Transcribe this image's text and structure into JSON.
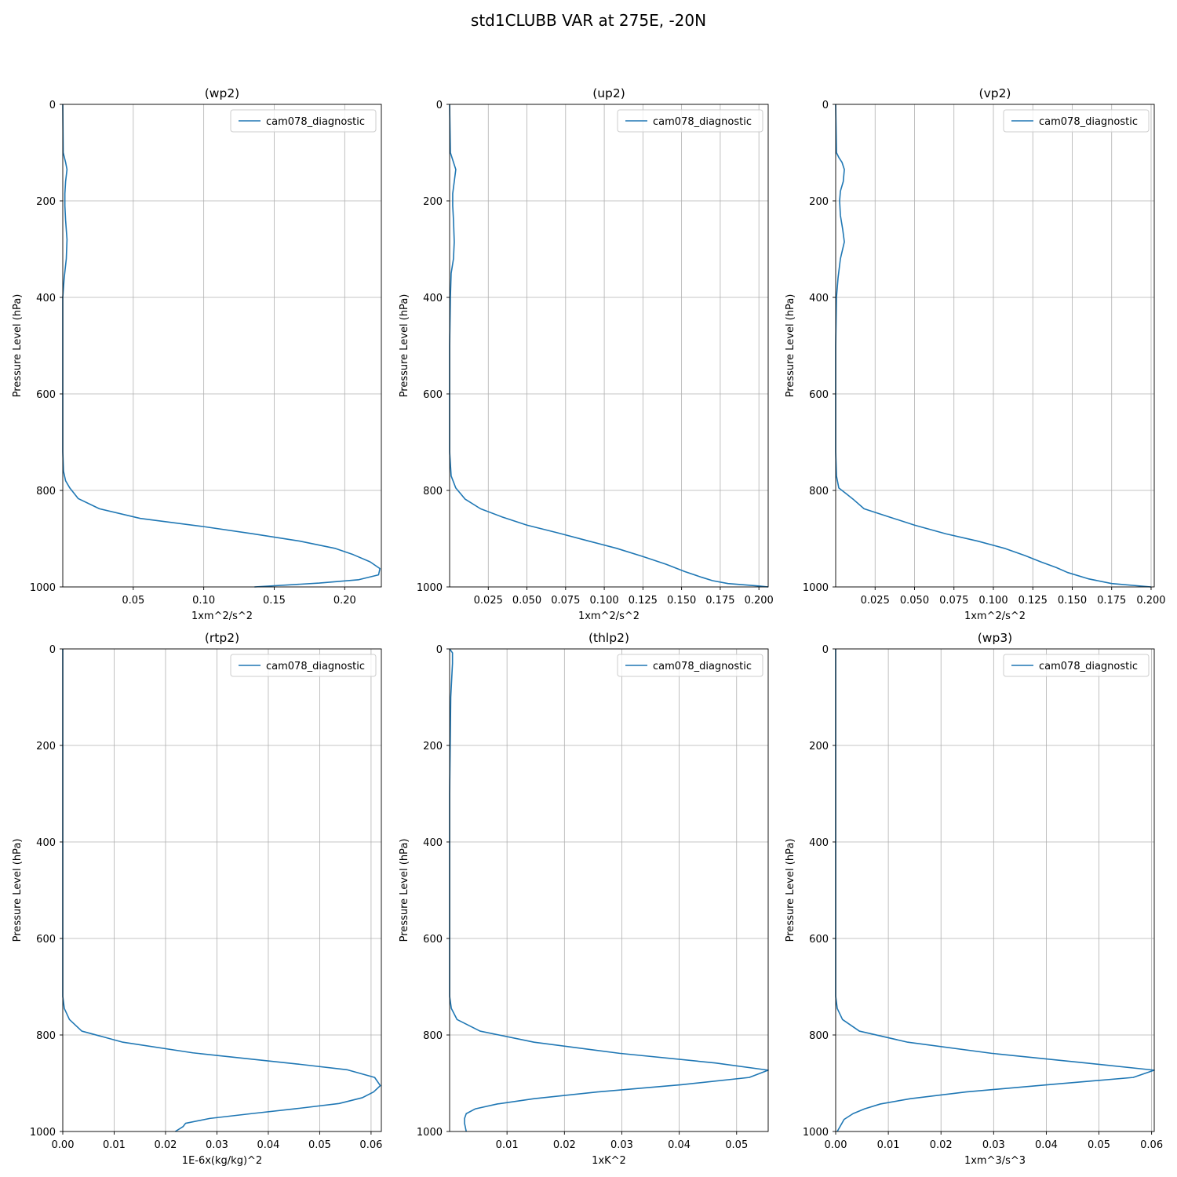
{
  "figure": {
    "title": "std1CLUBB VAR at 275E, -20N"
  },
  "chart_data": [
    {
      "type": "line",
      "title": "(wp2)",
      "xlabel": "1xm^2/s^2",
      "ylabel": "Pressure Level (hPa)",
      "xlim": [
        0.0,
        0.226
      ],
      "ylim": [
        1000,
        0
      ],
      "xticks": [
        "0.05",
        "0.10",
        "0.15",
        "0.20"
      ],
      "xtick_values": [
        0.05,
        0.1,
        0.15,
        0.2
      ],
      "yticks": [
        "0",
        "200",
        "400",
        "600",
        "800",
        "1000"
      ],
      "ytick_values": [
        0,
        200,
        400,
        600,
        800,
        1000
      ],
      "grid": true,
      "legend": "top-right",
      "series": [
        {
          "name": "cam078_diagnostic",
          "color": "#1f77b4",
          "x": [
            0.0,
            0.0003,
            0.002,
            0.003,
            0.002,
            0.0015,
            0.0015,
            0.002,
            0.003,
            0.0025,
            0.001,
            0.0,
            0.0,
            0.0,
            0.0,
            0.0005,
            0.002,
            0.005,
            0.011,
            0.026,
            0.055,
            0.1,
            0.135,
            0.168,
            0.193,
            0.206,
            0.218,
            0.225,
            0.224,
            0.21,
            0.182,
            0.136
          ],
          "y": [
            0,
            100,
            120,
            135,
            160,
            185,
            210,
            240,
            280,
            320,
            360,
            400,
            500,
            600,
            720,
            760,
            780,
            795,
            817,
            838,
            858,
            875,
            890,
            905,
            920,
            933,
            948,
            962,
            975,
            985,
            992,
            1000
          ]
        }
      ]
    },
    {
      "type": "line",
      "title": "(up2)",
      "xlabel": "1xm^2/s^2",
      "ylabel": "Pressure Level (hPa)",
      "xlim": [
        0.0,
        0.206
      ],
      "ylim": [
        1000,
        0
      ],
      "xticks": [
        "0.025",
        "0.050",
        "0.075",
        "0.100",
        "0.125",
        "0.150",
        "0.175",
        "0.200"
      ],
      "xtick_values": [
        0.025,
        0.05,
        0.075,
        0.1,
        0.125,
        0.15,
        0.175,
        0.2
      ],
      "yticks": [
        "0",
        "200",
        "400",
        "600",
        "800",
        "1000"
      ],
      "ytick_values": [
        0,
        200,
        400,
        600,
        800,
        1000
      ],
      "grid": true,
      "legend": "top-right",
      "series": [
        {
          "name": "cam078_diagnostic",
          "color": "#1f77b4",
          "x": [
            0.0,
            0.0005,
            0.002,
            0.004,
            0.003,
            0.002,
            0.002,
            0.0025,
            0.003,
            0.0025,
            0.001,
            0.0005,
            0.0,
            0.0,
            0.0,
            0.001,
            0.004,
            0.01,
            0.02,
            0.034,
            0.05,
            0.07,
            0.09,
            0.108,
            0.125,
            0.14,
            0.152,
            0.163,
            0.17,
            0.18,
            0.2,
            0.206
          ],
          "y": [
            0,
            100,
            115,
            135,
            160,
            185,
            210,
            240,
            285,
            320,
            350,
            400,
            500,
            600,
            720,
            770,
            795,
            818,
            838,
            855,
            872,
            888,
            905,
            920,
            937,
            953,
            968,
            980,
            987,
            993,
            998,
            1000
          ]
        }
      ]
    },
    {
      "type": "line",
      "title": "(vp2)",
      "xlabel": "1xm^2/s^2",
      "ylabel": "Pressure Level (hPa)",
      "xlim": [
        0.0,
        0.202
      ],
      "ylim": [
        1000,
        0
      ],
      "xticks": [
        "0.025",
        "0.050",
        "0.075",
        "0.100",
        "0.125",
        "0.150",
        "0.175",
        "0.200"
      ],
      "xtick_values": [
        0.025,
        0.05,
        0.075,
        0.1,
        0.125,
        0.15,
        0.175,
        0.2
      ],
      "yticks": [
        "0",
        "200",
        "400",
        "600",
        "800",
        "1000"
      ],
      "ytick_values": [
        0,
        200,
        400,
        600,
        800,
        1000
      ],
      "grid": true,
      "legend": "top-right",
      "series": [
        {
          "name": "cam078_diagnostic",
          "color": "#1f77b4",
          "x": [
            0.0,
            0.0005,
            0.002,
            0.004,
            0.0055,
            0.0048,
            0.003,
            0.0025,
            0.003,
            0.0045,
            0.0055,
            0.003,
            0.0015,
            0.0005,
            0.0,
            0.0,
            0.0,
            0.0005,
            0.002,
            0.006,
            0.011,
            0.018,
            0.034,
            0.05,
            0.07,
            0.09,
            0.107,
            0.12,
            0.13,
            0.14,
            0.147,
            0.16,
            0.175,
            0.2
          ],
          "y": [
            0,
            100,
            110,
            120,
            135,
            160,
            180,
            200,
            230,
            260,
            285,
            320,
            360,
            400,
            500,
            600,
            720,
            770,
            795,
            805,
            818,
            838,
            855,
            872,
            890,
            905,
            920,
            935,
            948,
            960,
            970,
            983,
            993,
            1000
          ]
        }
      ]
    },
    {
      "type": "line",
      "title": "(rtp2)",
      "xlabel": "1E-6x(kg/kg)^2",
      "ylabel": "Pressure Level (hPa)",
      "xlim": [
        0.0,
        0.062
      ],
      "ylim": [
        1000,
        0
      ],
      "xticks": [
        "0.00",
        "0.01",
        "0.02",
        "0.03",
        "0.04",
        "0.05",
        "0.06"
      ],
      "xtick_values": [
        0.0,
        0.01,
        0.02,
        0.03,
        0.04,
        0.05,
        0.06
      ],
      "yticks": [
        "0",
        "200",
        "400",
        "600",
        "800",
        "1000"
      ],
      "ytick_values": [
        0,
        200,
        400,
        600,
        800,
        1000
      ],
      "grid": true,
      "legend": "top-right",
      "series": [
        {
          "name": "cam078_diagnostic",
          "color": "#1f77b4",
          "x": [
            0.0,
            0.0,
            0.0,
            0.0,
            0.0,
            0.0003,
            0.0013,
            0.0037,
            0.0117,
            0.0253,
            0.0455,
            0.0553,
            0.0607,
            0.0618,
            0.0605,
            0.0583,
            0.0538,
            0.0452,
            0.0367,
            0.0286,
            0.0239,
            0.0234,
            0.0219
          ],
          "y": [
            0,
            200,
            400,
            600,
            720,
            745,
            768,
            792,
            815,
            837,
            860,
            872,
            888,
            905,
            918,
            930,
            942,
            953,
            963,
            973,
            983,
            990,
            1000
          ]
        }
      ]
    },
    {
      "type": "line",
      "title": "(thlp2)",
      "xlabel": "1xK^2",
      "ylabel": "Pressure Level (hPa)",
      "xlim": [
        0.0,
        0.0555
      ],
      "ylim": [
        1000,
        0
      ],
      "xticks": [
        "0.01",
        "0.02",
        "0.03",
        "0.04",
        "0.05"
      ],
      "xtick_values": [
        0.01,
        0.02,
        0.03,
        0.04,
        0.05
      ],
      "yticks": [
        "0",
        "200",
        "400",
        "600",
        "800",
        "1000"
      ],
      "ytick_values": [
        0,
        200,
        400,
        600,
        800,
        1000
      ],
      "grid": true,
      "legend": "top-right",
      "series": [
        {
          "name": "cam078_diagnostic",
          "color": "#1f77b4",
          "x": [
            0.0,
            0.0005,
            0.0005,
            0.0002,
            0.0001,
            0.0,
            0.0,
            0.0,
            0.0,
            0.0003,
            0.0013,
            0.0053,
            0.0147,
            0.0296,
            0.0463,
            0.0555,
            0.0522,
            0.0405,
            0.0258,
            0.0147,
            0.0083,
            0.0045,
            0.0029,
            0.0026,
            0.0026,
            0.0029
          ],
          "y": [
            0,
            8,
            30,
            100,
            200,
            300,
            400,
            600,
            720,
            745,
            768,
            792,
            815,
            838,
            858,
            873,
            888,
            903,
            918,
            932,
            943,
            953,
            963,
            973,
            983,
            1000
          ]
        }
      ]
    },
    {
      "type": "line",
      "title": "(wp3)",
      "xlabel": "1xm^3/s^3",
      "ylabel": "Pressure Level (hPa)",
      "xlim": [
        0.0,
        0.0605
      ],
      "ylim": [
        1000,
        0
      ],
      "xticks": [
        "0.00",
        "0.01",
        "0.02",
        "0.03",
        "0.04",
        "0.05",
        "0.06"
      ],
      "xtick_values": [
        0.0,
        0.01,
        0.02,
        0.03,
        0.04,
        0.05,
        0.06
      ],
      "yticks": [
        "0",
        "200",
        "400",
        "600",
        "800",
        "1000"
      ],
      "ytick_values": [
        0,
        200,
        400,
        600,
        800,
        1000
      ],
      "grid": true,
      "legend": "top-right",
      "series": [
        {
          "name": "cam078_diagnostic",
          "color": "#1f77b4",
          "x": [
            0.0,
            0.0,
            0.0,
            0.0,
            0.0,
            0.0003,
            0.0013,
            0.0045,
            0.0137,
            0.0296,
            0.0475,
            0.0605,
            0.0565,
            0.0405,
            0.0248,
            0.0142,
            0.0085,
            0.0055,
            0.0033,
            0.0016,
            0.0003
          ],
          "y": [
            0,
            200,
            400,
            600,
            720,
            745,
            768,
            792,
            815,
            838,
            858,
            873,
            888,
            903,
            918,
            932,
            943,
            953,
            963,
            975,
            1000
          ]
        }
      ]
    }
  ]
}
